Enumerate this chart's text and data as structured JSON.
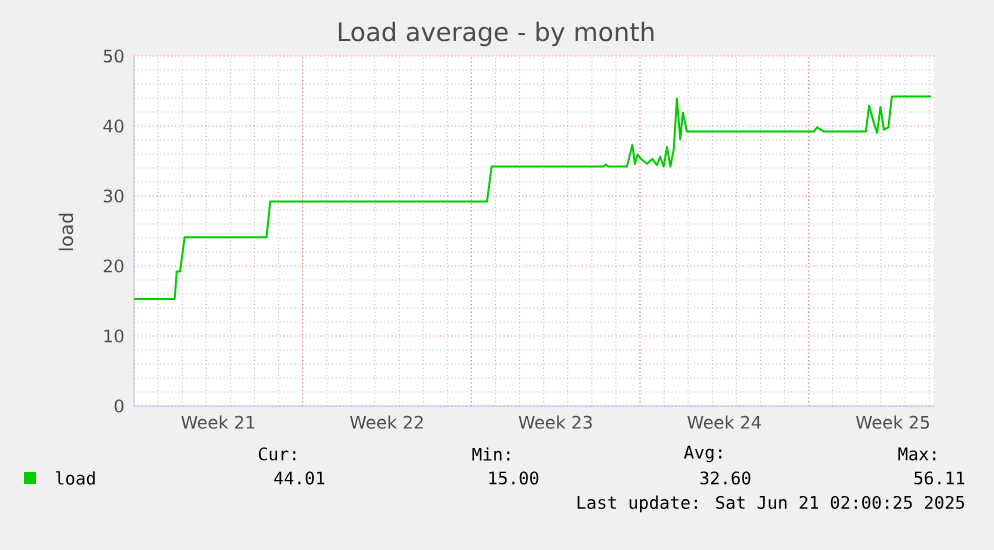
{
  "chart_data": {
    "type": "line",
    "title": "Load average - by month",
    "ylabel": "load",
    "x": [
      "2025-05-19T00:00",
      "2025-05-20T16:34",
      "2025-05-20T18:29",
      "2025-05-20T21:50",
      "2025-05-21T02:24",
      "2025-05-24T12:00",
      "2025-05-24T15:36",
      "2025-06-02T15:36",
      "2025-06-02T20:10",
      "2025-06-07T11:46",
      "2025-06-07T13:55",
      "2025-06-07T16:19",
      "2025-06-08T11:02",
      "2025-06-08T16:19",
      "2025-06-08T18:58",
      "2025-06-08T21:36",
      "2025-06-09T01:41",
      "2025-06-09T06:58",
      "2025-06-09T12:14",
      "2025-06-09T16:48",
      "2025-06-09T20:10",
      "2025-06-09T23:31",
      "2025-06-10T02:53",
      "2025-06-10T06:14",
      "2025-06-10T09:36",
      "2025-06-10T12:43",
      "2025-06-10T16:05",
      "2025-06-10T18:43",
      "2025-06-10T22:48",
      "2025-06-16T05:02",
      "2025-06-16T08:24",
      "2025-06-16T15:07",
      "2025-06-18T08:53",
      "2025-06-18T12:14",
      "2025-06-18T17:02",
      "2025-06-18T20:10",
      "2025-06-18T23:31",
      "2025-06-19T02:53",
      "2025-06-19T07:26",
      "2025-06-19T10:48",
      "2025-06-21T02:00"
    ],
    "series": [
      {
        "name": "load",
        "color": "#00cc00",
        "values": [
          15.3,
          15.3,
          19.2,
          19.2,
          24.1,
          24.1,
          29.2,
          29.2,
          34.2,
          34.2,
          34.5,
          34.2,
          34.2,
          37.3,
          34.6,
          35.9,
          35.2,
          34.6,
          35.3,
          34.4,
          35.6,
          34.2,
          37.0,
          34.2,
          36.7,
          43.9,
          38.1,
          41.9,
          39.2,
          39.2,
          39.8,
          39.2,
          39.2,
          42.9,
          40.4,
          39.0,
          42.7,
          39.5,
          39.8,
          44.2,
          44.2
        ]
      }
    ],
    "xlim": [
      "2025-05-19T00:00",
      "2025-06-21T04:48"
    ],
    "ylim": [
      0,
      50
    ],
    "xticks": [
      {
        "value": "2025-05-22T12:00",
        "label": "Week 21"
      },
      {
        "value": "2025-05-26",
        "label": null
      },
      {
        "value": "2025-05-29T12:00",
        "label": "Week 22"
      },
      {
        "value": "2025-06-02",
        "label": null
      },
      {
        "value": "2025-06-05T12:00",
        "label": "Week 23"
      },
      {
        "value": "2025-06-09",
        "label": null
      },
      {
        "value": "2025-06-12T12:00",
        "label": "Week 24"
      },
      {
        "value": "2025-06-16",
        "label": null
      },
      {
        "value": "2025-06-19T12:00",
        "label": "Week 25"
      }
    ],
    "yticks": [
      0,
      10,
      20,
      30,
      40,
      50
    ],
    "grid": true,
    "legend": "bottom",
    "annotations": [
      "Cur:",
      "Min:",
      "Avg:",
      "Max:",
      "44.01",
      "15.00",
      "32.60",
      "56.11",
      "Last update: Sat Jun 21 02:00:25 2025"
    ]
  }
}
